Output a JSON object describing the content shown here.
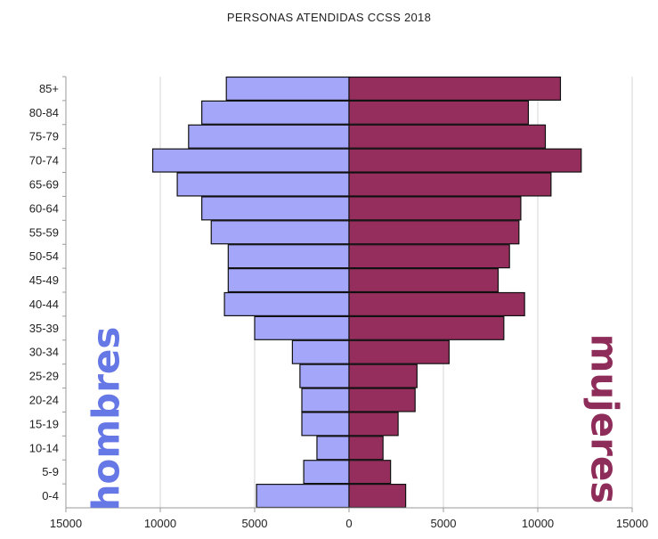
{
  "chart_data": {
    "type": "bar",
    "orientation": "horizontal",
    "layout": "population-pyramid",
    "title": "PERSONAS ATENDIDAS CCSS 2018",
    "categories": [
      "0-4",
      "5-9",
      "10-14",
      "15-19",
      "20-24",
      "25-29",
      "30-34",
      "35-39",
      "40-44",
      "45-49",
      "50-54",
      "55-59",
      "60-64",
      "65-69",
      "70-74",
      "75-79",
      "80-84",
      "85+"
    ],
    "series": [
      {
        "name": "hombres",
        "color": "#a4a6fa",
        "values": [
          4900,
          2400,
          1700,
          2500,
          2500,
          2600,
          3000,
          5000,
          6600,
          6400,
          6400,
          7300,
          7800,
          9100,
          10400,
          8500,
          7800,
          6500
        ]
      },
      {
        "name": "mujeres",
        "color": "#952e5d",
        "values": [
          3000,
          2200,
          1800,
          2600,
          3500,
          3600,
          5300,
          8200,
          9300,
          7900,
          8500,
          9000,
          9100,
          10700,
          12300,
          10400,
          9500,
          11200
        ]
      }
    ],
    "xlim": [
      -15000,
      15000
    ],
    "xticks": [
      -15000,
      -10000,
      -5000,
      0,
      5000,
      10000,
      15000
    ],
    "xtick_labels": [
      "15000",
      "10000",
      "5000",
      "0",
      "5000",
      "10000",
      "15000"
    ],
    "grid": "vertical",
    "legend": "none",
    "xlabel": "",
    "ylabel": ""
  }
}
